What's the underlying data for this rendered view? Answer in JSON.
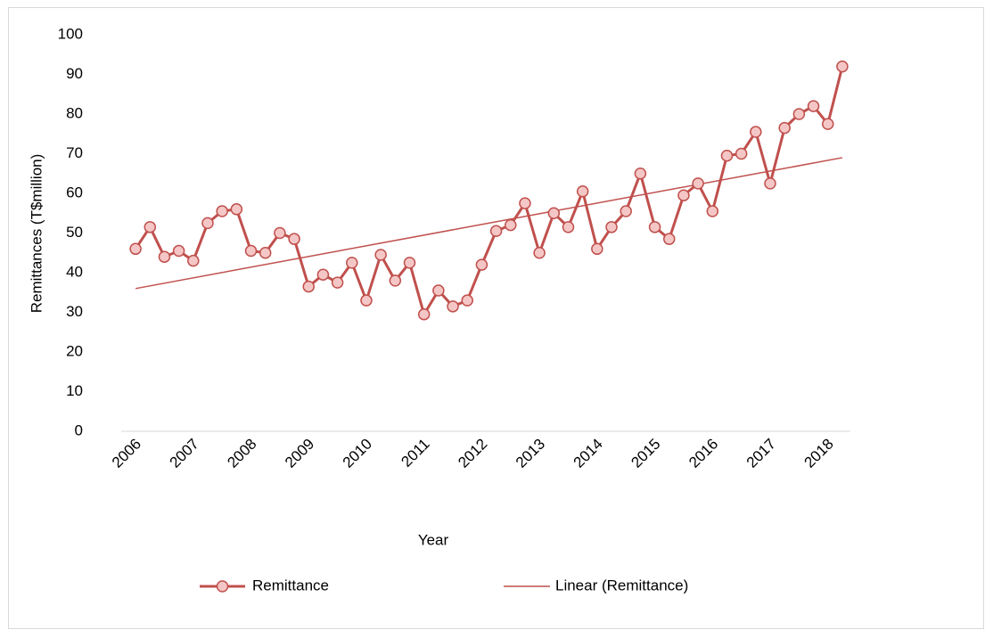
{
  "chart_data": {
    "type": "line",
    "x_label": "Year",
    "y_label": "Remittances (T$million)",
    "categories": [
      "2006",
      null,
      null,
      null,
      "2007",
      null,
      null,
      null,
      "2008",
      null,
      null,
      null,
      "2009",
      null,
      null,
      null,
      "2010",
      null,
      null,
      null,
      "2011",
      null,
      null,
      null,
      "2012",
      null,
      null,
      null,
      "2013",
      null,
      null,
      null,
      "2014",
      null,
      null,
      null,
      "2015",
      null,
      null,
      null,
      "2016",
      null,
      null,
      null,
      "2017",
      null,
      null,
      null,
      "2018",
      null
    ],
    "series": [
      {
        "name": "Remittance",
        "color": "#c0504d",
        "marker_fill": "#f4c7c6",
        "values": [
          46,
          51.5,
          44,
          45.5,
          43,
          52.5,
          55.5,
          56,
          45.5,
          45,
          50,
          48.5,
          36.5,
          39.5,
          37.5,
          42.5,
          33,
          44.5,
          38,
          42.5,
          29.5,
          35.5,
          31.5,
          33,
          42,
          50.5,
          52,
          57.5,
          45,
          55,
          51.5,
          60.5,
          46,
          51.5,
          55.5,
          65,
          51.5,
          48.5,
          59.5,
          62.5,
          55.5,
          69.5,
          70,
          75.5,
          62.5,
          76.5,
          80,
          82,
          77.5,
          92
        ]
      }
    ],
    "trend": {
      "name": "Linear (Remittance)",
      "color": "#c0504d",
      "values": [
        36,
        69
      ]
    },
    "ylim": [
      0,
      100
    ],
    "yticks": [
      0,
      10,
      20,
      30,
      40,
      50,
      60,
      70,
      80,
      90,
      100
    ],
    "grid": false
  }
}
